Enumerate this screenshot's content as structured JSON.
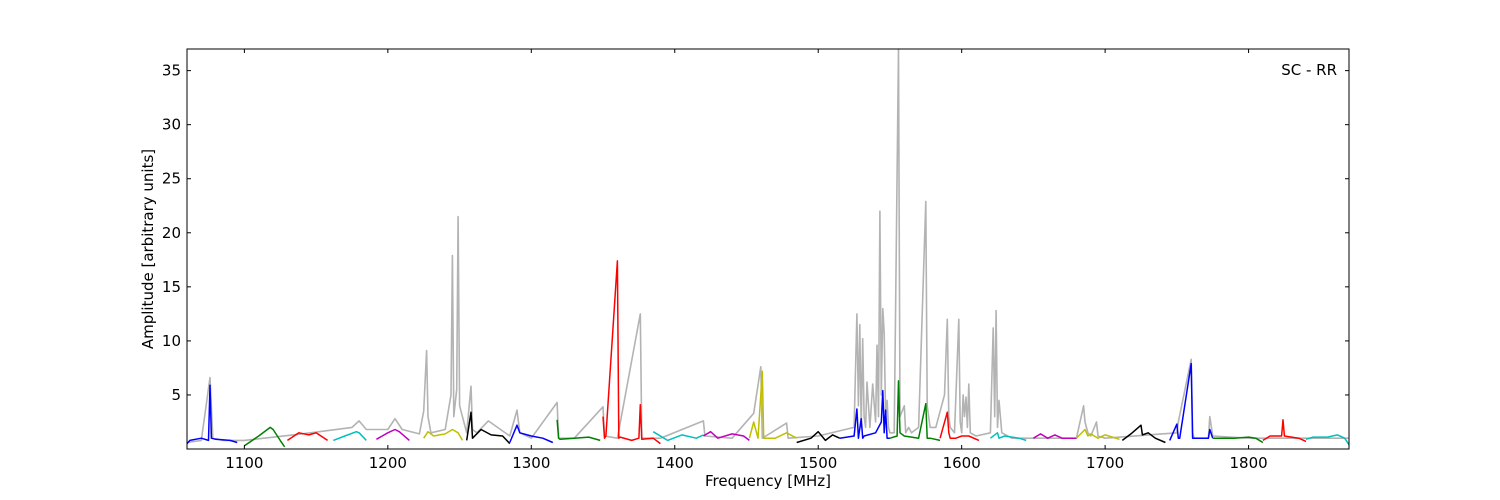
{
  "chart_data": {
    "type": "line",
    "title": "",
    "annotation": "SC - RR",
    "xlabel": "Frequency [MHz]",
    "ylabel": "Amplitude [arbitrary units]",
    "xlim": [
      1060,
      1870
    ],
    "ylim": [
      0,
      37
    ],
    "xticks": [
      1100,
      1200,
      1300,
      1400,
      1500,
      1600,
      1700,
      1800
    ],
    "yticks": [
      5,
      10,
      15,
      20,
      25,
      30,
      35
    ],
    "grid": false,
    "background_series": {
      "color": "#b3b3b3",
      "x": [
        1060,
        1070,
        1076,
        1078,
        1085,
        1100,
        1140,
        1175,
        1180,
        1185,
        1200,
        1205,
        1210,
        1222,
        1225,
        1227,
        1228,
        1230,
        1240,
        1244,
        1245,
        1246,
        1248,
        1249,
        1250,
        1255,
        1258,
        1259,
        1262,
        1270,
        1285,
        1290,
        1292,
        1300,
        1318,
        1319,
        1330,
        1350,
        1351,
        1360,
        1376,
        1377,
        1390,
        1420,
        1421,
        1440,
        1455,
        1460,
        1461,
        1478,
        1479,
        1500,
        1525,
        1527,
        1528,
        1529,
        1530,
        1531,
        1532,
        1533,
        1534,
        1536,
        1538,
        1540,
        1541,
        1542,
        1543,
        1544,
        1545,
        1546,
        1547,
        1548,
        1549,
        1550,
        1553,
        1556,
        1557,
        1560,
        1561,
        1563,
        1565,
        1570,
        1575,
        1576,
        1578,
        1582,
        1588,
        1590,
        1591,
        1592,
        1595,
        1598,
        1599,
        1600,
        1601,
        1602,
        1603,
        1604,
        1605,
        1606,
        1610,
        1620,
        1622,
        1623,
        1624,
        1625,
        1626,
        1628,
        1635,
        1680,
        1685,
        1686,
        1688,
        1690,
        1694,
        1695,
        1700,
        1750,
        1751,
        1760,
        1761,
        1762,
        1772,
        1773,
        1775,
        1800,
        1870
      ],
      "y": [
        0.6,
        0.8,
        6.6,
        1.0,
        0.8,
        0.8,
        1.4,
        2.0,
        2.6,
        1.8,
        1.8,
        2.8,
        1.8,
        1.4,
        3.5,
        9.1,
        3.0,
        1.5,
        1.8,
        5.0,
        17.9,
        3.0,
        5.5,
        21.5,
        4.0,
        1.5,
        5.8,
        1.8,
        1.5,
        2.6,
        1.2,
        3.6,
        1.5,
        1.0,
        4.3,
        1.0,
        1.0,
        3.9,
        1.2,
        1.0,
        12.5,
        1.0,
        1.0,
        2.6,
        1.2,
        1.0,
        3.3,
        7.6,
        1.0,
        2.4,
        1.0,
        1.2,
        2.0,
        12.5,
        4.0,
        11.5,
        2.0,
        10.2,
        3.0,
        2.0,
        6.2,
        2.0,
        6.0,
        2.5,
        9.6,
        3.0,
        22.0,
        5.0,
        13.0,
        10.7,
        3.0,
        4.5,
        2.0,
        1.5,
        1.5,
        37.0,
        3.0,
        4.0,
        1.5,
        2.0,
        1.5,
        2.0,
        22.9,
        4.0,
        2.0,
        2.0,
        5.0,
        12.0,
        3.0,
        2.0,
        1.5,
        12.0,
        2.5,
        1.5,
        5.0,
        3.0,
        4.8,
        2.0,
        6.0,
        1.5,
        1.2,
        1.5,
        11.2,
        3.0,
        12.8,
        2.0,
        4.5,
        1.5,
        1.0,
        1.0,
        4.0,
        2.5,
        1.5,
        1.2,
        2.5,
        1.2,
        1.0,
        1.5,
        2.5,
        8.3,
        1.5,
        1.0,
        1.0,
        3.0,
        1.2,
        1.0,
        1.0
      ]
    },
    "series": [
      {
        "color": "#0000ff",
        "x": [
          1060,
          1062,
          1070,
          1075,
          1076,
          1077,
          1080,
          1090,
          1095
        ],
        "y": [
          0.5,
          0.8,
          1.0,
          0.8,
          5.9,
          1.0,
          0.9,
          0.8,
          0.6
        ]
      },
      {
        "color": "#008000",
        "x": [
          1100,
          1110,
          1118,
          1120,
          1125,
          1128
        ],
        "y": [
          0.3,
          1.2,
          2.0,
          1.8,
          0.8,
          0.2
        ]
      },
      {
        "color": "#ff0000",
        "x": [
          1130,
          1138,
          1145,
          1150,
          1158
        ],
        "y": [
          0.8,
          1.5,
          1.3,
          1.5,
          0.8
        ]
      },
      {
        "color": "#00bfbf",
        "x": [
          1162,
          1170,
          1178,
          1180,
          1185
        ],
        "y": [
          0.8,
          1.2,
          1.6,
          1.5,
          0.8
        ]
      },
      {
        "color": "#bf00bf",
        "x": [
          1192,
          1200,
          1205,
          1208,
          1215
        ],
        "y": [
          0.9,
          1.5,
          1.8,
          1.6,
          0.8
        ]
      },
      {
        "color": "#bfbf00",
        "x": [
          1225,
          1228,
          1232,
          1240,
          1245,
          1249,
          1252
        ],
        "y": [
          1.0,
          1.6,
          1.2,
          1.4,
          1.8,
          1.5,
          0.8
        ]
      },
      {
        "color": "#000000",
        "x": [
          1255,
          1258,
          1259,
          1265,
          1272,
          1280,
          1285
        ],
        "y": [
          0.8,
          3.4,
          1.0,
          1.8,
          1.3,
          1.2,
          0.5
        ]
      },
      {
        "color": "#0000ff",
        "x": [
          1285,
          1290,
          1292,
          1300,
          1308,
          1315
        ],
        "y": [
          0.6,
          2.2,
          1.5,
          1.2,
          1.0,
          0.6
        ]
      },
      {
        "color": "#008000",
        "x": [
          1318,
          1319,
          1320,
          1330,
          1340,
          1348
        ],
        "y": [
          2.7,
          1.0,
          0.9,
          1.0,
          1.1,
          0.8
        ]
      },
      {
        "color": "#ff0000",
        "x": [
          1350,
          1351,
          1352,
          1360,
          1361,
          1362,
          1370,
          1375,
          1376,
          1377,
          1385,
          1390
        ],
        "y": [
          3.0,
          1.0,
          1.2,
          17.4,
          1.0,
          1.1,
          0.8,
          1.0,
          4.1,
          0.9,
          1.0,
          0.5
        ]
      },
      {
        "color": "#00bfbf",
        "x": [
          1385,
          1395,
          1405,
          1415,
          1420
        ],
        "y": [
          1.6,
          0.8,
          1.3,
          1.0,
          1.3
        ]
      },
      {
        "color": "#bf00bf",
        "x": [
          1420,
          1425,
          1430,
          1440,
          1448,
          1452
        ],
        "y": [
          1.2,
          1.6,
          1.0,
          1.4,
          1.2,
          0.8
        ]
      },
      {
        "color": "#bfbf00",
        "x": [
          1452,
          1455,
          1458,
          1461,
          1462,
          1470,
          1478,
          1485
        ],
        "y": [
          1.0,
          2.5,
          1.0,
          7.2,
          1.0,
          1.0,
          1.5,
          1.0
        ]
      },
      {
        "color": "#000000",
        "x": [
          1485,
          1495,
          1500,
          1505,
          1510,
          1515
        ],
        "y": [
          0.6,
          1.0,
          1.6,
          0.8,
          1.3,
          1.0
        ]
      },
      {
        "color": "#0000ff",
        "x": [
          1515,
          1525,
          1527,
          1528,
          1530,
          1531,
          1532,
          1540,
          1544,
          1545,
          1546,
          1547,
          1548,
          1550
        ],
        "y": [
          1.0,
          1.2,
          3.7,
          1.0,
          2.8,
          1.0,
          1.2,
          1.5,
          2.5,
          5.4,
          1.5,
          3.6,
          1.0,
          1.0
        ]
      },
      {
        "color": "#008000",
        "x": [
          1550,
          1555,
          1556,
          1557,
          1560,
          1570,
          1575,
          1576,
          1578,
          1585
        ],
        "y": [
          1.0,
          1.2,
          6.3,
          1.5,
          1.2,
          1.0,
          4.2,
          1.0,
          1.0,
          0.8
        ]
      },
      {
        "color": "#ff0000",
        "x": [
          1585,
          1590,
          1591,
          1592,
          1596,
          1600,
          1605,
          1612
        ],
        "y": [
          1.0,
          3.4,
          1.5,
          1.0,
          1.0,
          1.2,
          1.2,
          0.8
        ]
      },
      {
        "color": "#00bfbf",
        "x": [
          1620,
          1625,
          1626,
          1630,
          1640,
          1645
        ],
        "y": [
          1.0,
          1.5,
          1.0,
          1.2,
          1.0,
          0.8
        ]
      },
      {
        "color": "#bf00bf",
        "x": [
          1650,
          1655,
          1660,
          1665,
          1670,
          1680
        ],
        "y": [
          1.0,
          1.4,
          1.0,
          1.3,
          1.0,
          1.0
        ]
      },
      {
        "color": "#bfbf00",
        "x": [
          1680,
          1686,
          1688,
          1690,
          1695,
          1700,
          1710
        ],
        "y": [
          1.0,
          1.8,
          1.2,
          1.4,
          1.0,
          1.3,
          0.9
        ]
      },
      {
        "color": "#000000",
        "x": [
          1712,
          1718,
          1725,
          1726,
          1730,
          1735,
          1742
        ],
        "y": [
          0.8,
          1.4,
          2.2,
          1.3,
          1.5,
          1.0,
          0.6
        ]
      },
      {
        "color": "#0000ff",
        "x": [
          1745,
          1750,
          1751,
          1752,
          1760,
          1761,
          1762,
          1772,
          1773,
          1775
        ],
        "y": [
          0.8,
          2.3,
          1.0,
          1.0,
          7.9,
          1.0,
          1.0,
          1.0,
          1.8,
          1.0
        ]
      },
      {
        "color": "#008000",
        "x": [
          1775,
          1780,
          1790,
          1800,
          1805,
          1810
        ],
        "y": [
          1.0,
          1.0,
          1.0,
          1.1,
          1.0,
          0.6
        ]
      },
      {
        "color": "#ff0000",
        "x": [
          1810,
          1815,
          1823,
          1824,
          1825,
          1830,
          1835,
          1840
        ],
        "y": [
          0.8,
          1.2,
          1.2,
          2.7,
          1.2,
          1.1,
          1.0,
          0.7
        ]
      },
      {
        "color": "#00bfbf",
        "x": [
          1840,
          1845,
          1855,
          1862,
          1867,
          1870
        ],
        "y": [
          0.9,
          1.1,
          1.1,
          1.3,
          1.0,
          0.4
        ]
      }
    ]
  }
}
